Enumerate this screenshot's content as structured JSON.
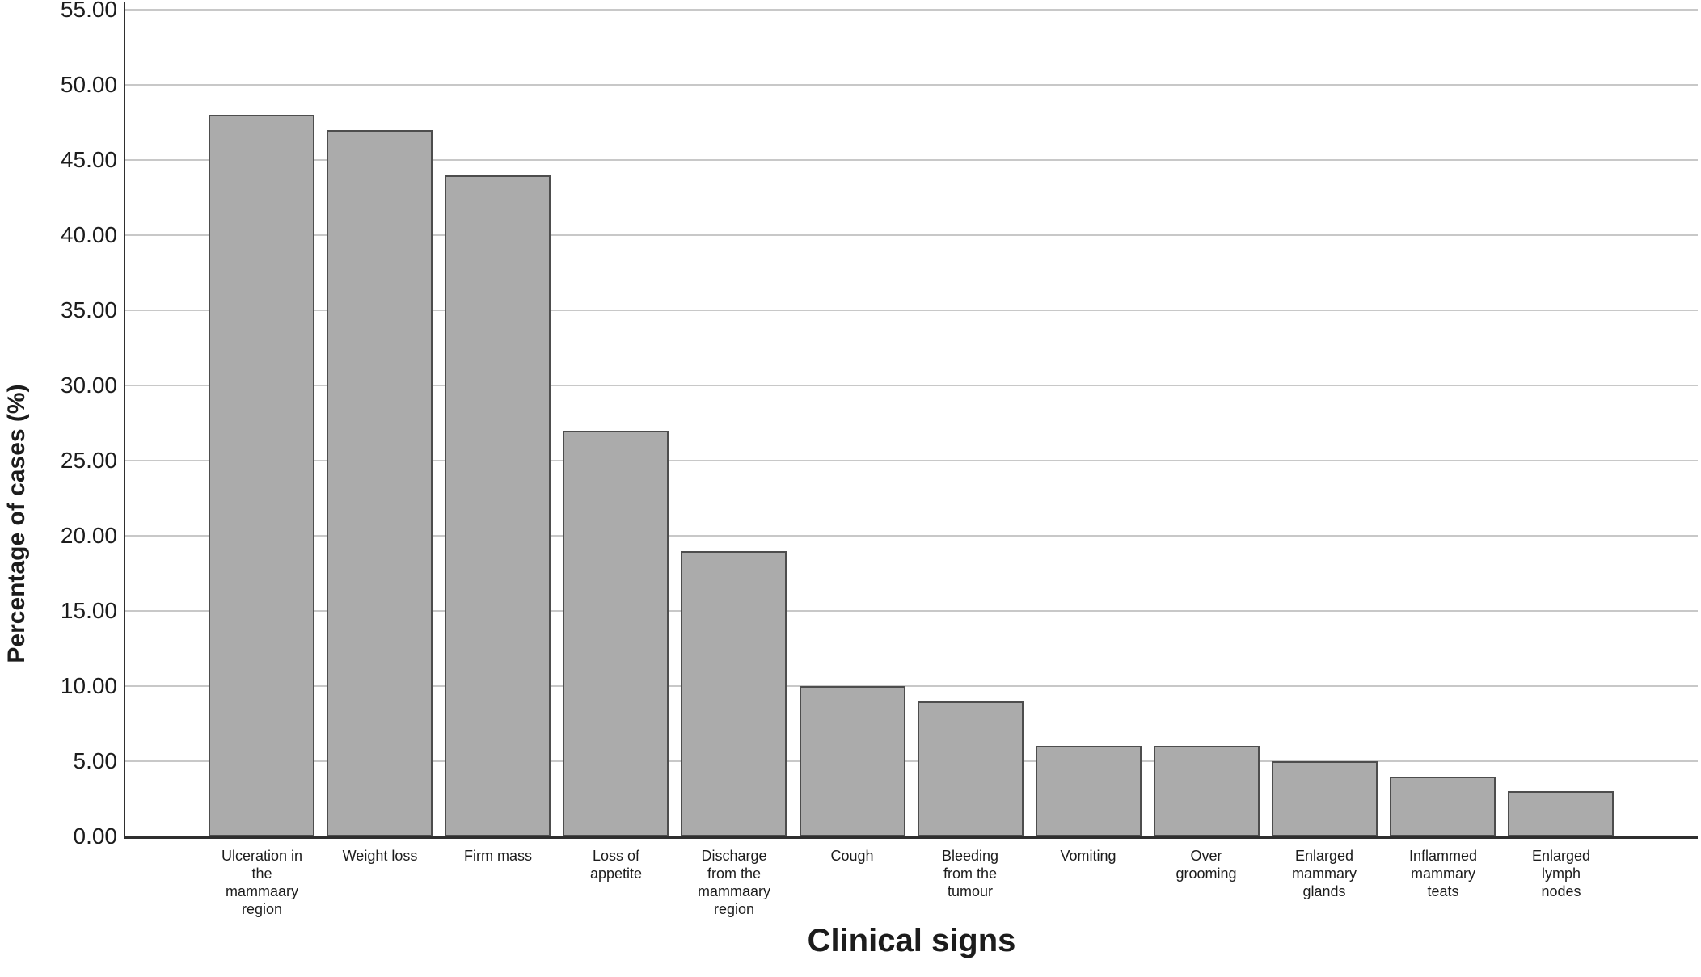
{
  "chart_data": {
    "type": "bar",
    "title": "",
    "xlabel": "Clinical signs",
    "ylabel": "Percentage of cases (%)",
    "categories": [
      "Ulceration in the mammaary region",
      "Weight loss",
      "Firm mass",
      "Loss of appetite",
      "Discharge from the mammaary region",
      "Cough",
      "Bleeding from the tumour",
      "Vomiting",
      "Over grooming",
      "Enlarged mammary glands",
      "Inflammed mammary teats",
      "Enlarged lymph nodes"
    ],
    "category_label_lines": [
      [
        "Ulceration in",
        "the",
        "mammaary",
        "region"
      ],
      [
        "Weight loss"
      ],
      [
        "Firm mass"
      ],
      [
        "Loss of",
        "appetite"
      ],
      [
        "Discharge",
        "from the",
        "mammaary",
        "region"
      ],
      [
        "Cough"
      ],
      [
        "Bleeding",
        "from the",
        "tumour"
      ],
      [
        "Vomiting"
      ],
      [
        "Over",
        "grooming"
      ],
      [
        "Enlarged",
        "mammary",
        "glands"
      ],
      [
        "Inflammed",
        "mammary",
        "teats"
      ],
      [
        "Enlarged",
        "lymph",
        "nodes"
      ]
    ],
    "values": [
      48,
      47,
      44,
      27,
      19,
      10,
      9,
      6,
      6,
      5,
      4,
      3
    ],
    "ylim": [
      0,
      55
    ],
    "ytick_step": 5,
    "ytick_labels": [
      "0.00",
      "5.00",
      "10.00",
      "15.00",
      "20.00",
      "25.00",
      "30.00",
      "35.00",
      "40.00",
      "45.00",
      "50.00",
      "55.00"
    ],
    "grid": "horizontal",
    "legend": "none",
    "colors": {
      "bar_fill": "#ababab",
      "bar_border": "#4d4d4d",
      "gridline": "#c8c8c8",
      "axis": "#2f2f2f",
      "text": "#1c1c1c"
    }
  }
}
